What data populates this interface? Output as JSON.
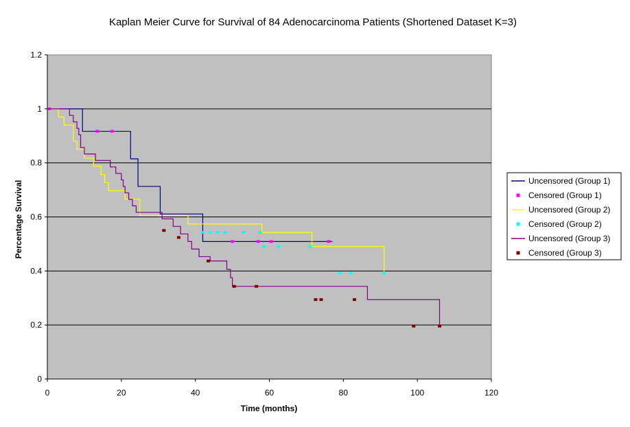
{
  "chart_data": {
    "type": "line",
    "title": "Kaplan Meier Curve for Survival of 84 Adenocarcinoma Patients (Shortened Dataset K=3)",
    "xlabel": "Time (months)",
    "ylabel": "Percentage Survival",
    "xlim": [
      0,
      120
    ],
    "ylim": [
      0,
      1.2
    ],
    "xticks": [
      "0",
      "20",
      "40",
      "60",
      "80",
      "100",
      "120"
    ],
    "yticks": [
      "0",
      "0.2",
      "0.4",
      "0.6",
      "0.8",
      "1",
      "1.2"
    ],
    "grid": "horizontal",
    "plot_background": "#c0c0c0",
    "legend_position": "right",
    "series": [
      {
        "name": "Uncensored (Group 1)",
        "kind": "step",
        "color": "#000080",
        "x": [
          0,
          9.5,
          22.5,
          24.5,
          30.5,
          42,
          77
        ],
        "y": [
          1,
          0.917,
          0.815,
          0.713,
          0.611,
          0.509,
          0.509
        ]
      },
      {
        "name": "Censored (Group 1)",
        "kind": "points",
        "color": "#ff00ff",
        "x": [
          0.5,
          13.5,
          17.5,
          50,
          57,
          60.5,
          76
        ],
        "y": [
          1,
          0.917,
          0.917,
          0.509,
          0.509,
          0.509,
          0.509
        ]
      },
      {
        "name": "Uncensored (Group 2)",
        "kind": "step",
        "color": "#ffff00",
        "x": [
          0,
          3,
          4.5,
          7,
          8,
          10,
          12.5,
          14.5,
          15.5,
          16.5,
          21,
          25,
          38,
          58,
          71.5,
          91
        ],
        "y": [
          1,
          0.97,
          0.94,
          0.88,
          0.85,
          0.818,
          0.788,
          0.757,
          0.727,
          0.697,
          0.666,
          0.605,
          0.574,
          0.543,
          0.491,
          0.392
        ]
      },
      {
        "name": "Censored (Group 2)",
        "kind": "points",
        "color": "#00ffff",
        "x": [
          42,
          44,
          46,
          48,
          53,
          57.5,
          58.5,
          62.5,
          71,
          79,
          82,
          91
        ],
        "y": [
          0.543,
          0.543,
          0.543,
          0.543,
          0.543,
          0.543,
          0.491,
          0.491,
          0.491,
          0.392,
          0.392,
          0.392
        ]
      },
      {
        "name": "Uncensored (Group 3)",
        "kind": "step",
        "color": "#800080",
        "x": [
          0,
          6,
          7,
          8,
          8.5,
          9,
          10,
          13,
          17,
          18.5,
          20,
          20.5,
          21,
          22,
          23,
          24,
          31,
          34,
          36,
          38,
          39,
          41,
          44,
          48.5,
          49.5,
          50,
          67,
          86.5,
          106
        ],
        "y": [
          1,
          0.976,
          0.952,
          0.928,
          0.904,
          0.857,
          0.833,
          0.809,
          0.785,
          0.761,
          0.737,
          0.713,
          0.689,
          0.665,
          0.641,
          0.617,
          0.593,
          0.565,
          0.537,
          0.509,
          0.481,
          0.453,
          0.437,
          0.406,
          0.375,
          0.343,
          0.343,
          0.294,
          0.196
        ]
      },
      {
        "name": "Censored (Group 3)",
        "kind": "points",
        "color": "#800000",
        "x": [
          31.5,
          35.5,
          43.5,
          50.5,
          56.5,
          72.5,
          74,
          83,
          99,
          106
        ],
        "y": [
          0.55,
          0.524,
          0.437,
          0.343,
          0.343,
          0.294,
          0.294,
          0.294,
          0.196,
          0.196
        ]
      }
    ]
  }
}
